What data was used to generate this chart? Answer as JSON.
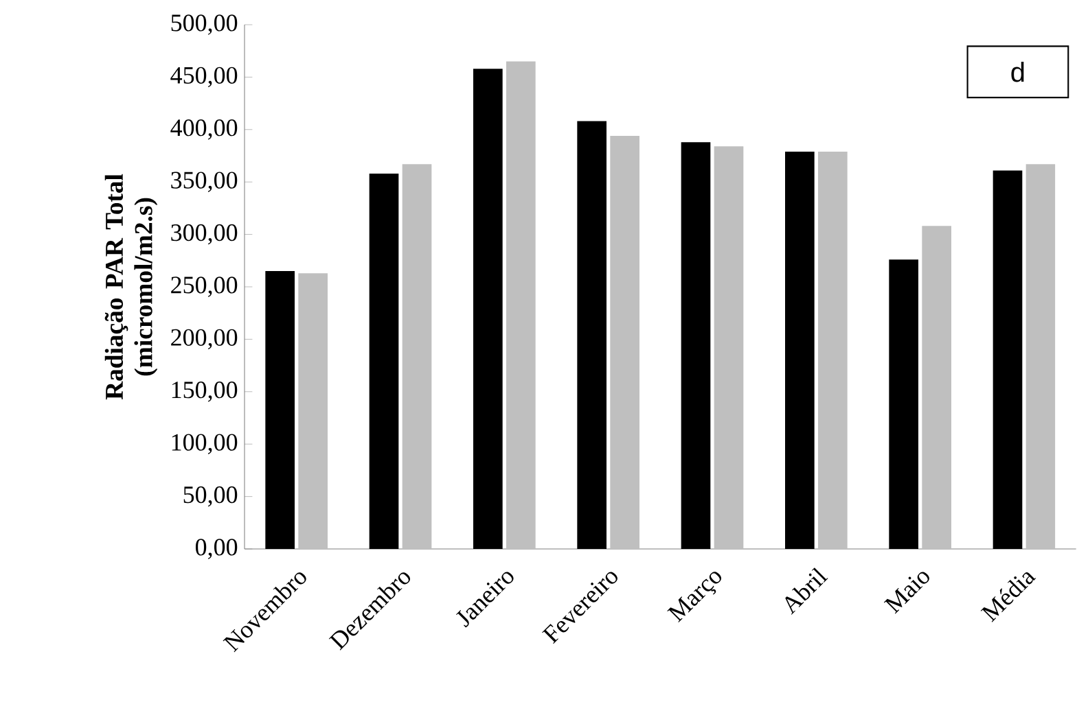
{
  "chart_data": {
    "type": "bar",
    "ylabel": "Radiação PAR Total (micromol/m2.s)",
    "categories": [
      "Novembro",
      "Dezembro",
      "Janeiro",
      "Fevereiro",
      "Março",
      "Abril",
      "Maio",
      "Média"
    ],
    "series": [
      {
        "color": "#000000",
        "values": [
          265,
          358,
          458,
          408,
          388,
          379,
          276,
          361
        ]
      },
      {
        "color": "#bfbfbf",
        "values": [
          263,
          367,
          465,
          394,
          384,
          379,
          308,
          367
        ]
      }
    ],
    "ylim": [
      0,
      500
    ],
    "yticks": [
      {
        "value": 0,
        "label": "0,00"
      },
      {
        "value": 50,
        "label": "50,00"
      },
      {
        "value": 100,
        "label": "100,00"
      },
      {
        "value": 150,
        "label": "150,00"
      },
      {
        "value": 200,
        "label": "200,00"
      },
      {
        "value": 250,
        "label": "250,00"
      },
      {
        "value": 300,
        "label": "300,00"
      },
      {
        "value": 350,
        "label": "350,00"
      },
      {
        "value": 400,
        "label": "400,00"
      },
      {
        "value": 450,
        "label": "450,00"
      },
      {
        "value": 500,
        "label": "500,00"
      }
    ],
    "annotations": [
      "d"
    ]
  }
}
